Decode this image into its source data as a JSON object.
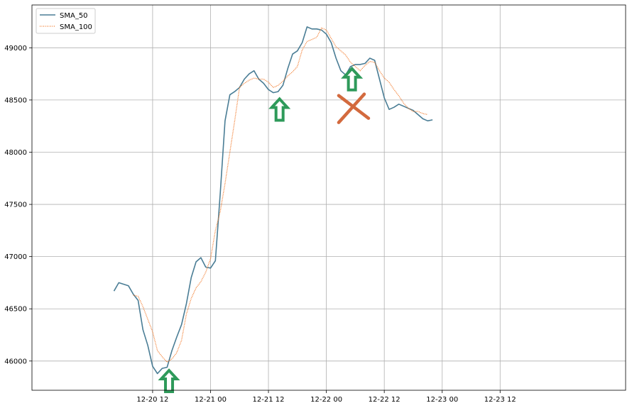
{
  "chart_data": {
    "type": "line",
    "title": "",
    "xlabel": "",
    "ylabel": "",
    "x_unit": "hours",
    "x_range": [
      -13,
      110
    ],
    "x_ticks": [
      {
        "x": 12,
        "label": "12-20 12"
      },
      {
        "x": 24,
        "label": "12-21 00"
      },
      {
        "x": 36,
        "label": "12-21 12"
      },
      {
        "x": 48,
        "label": "12-22 00"
      },
      {
        "x": 60,
        "label": "12-22 12"
      },
      {
        "x": 72,
        "label": "12-23 00"
      },
      {
        "x": 84,
        "label": "12-23 12"
      }
    ],
    "ylim": [
      45720,
      49410
    ],
    "y_ticks": [
      46000,
      46500,
      47000,
      47500,
      48000,
      48500,
      49000
    ],
    "grid": true,
    "legend_position": "top-left",
    "series": [
      {
        "name": "SMA_50",
        "color": "#4a7d95",
        "style": "solid",
        "points": [
          [
            4,
            46670
          ],
          [
            5,
            46750
          ],
          [
            7,
            46720
          ],
          [
            8,
            46640
          ],
          [
            9,
            46580
          ],
          [
            10,
            46300
          ],
          [
            11,
            46150
          ],
          [
            12,
            45950
          ],
          [
            13,
            45880
          ],
          [
            14,
            45930
          ],
          [
            15,
            45940
          ],
          [
            16,
            46100
          ],
          [
            17,
            46230
          ],
          [
            18,
            46350
          ],
          [
            19,
            46550
          ],
          [
            20,
            46800
          ],
          [
            21,
            46950
          ],
          [
            22,
            46990
          ],
          [
            23,
            46900
          ],
          [
            24,
            46890
          ],
          [
            25,
            46960
          ],
          [
            26,
            47600
          ],
          [
            27,
            48300
          ],
          [
            28,
            48550
          ],
          [
            29,
            48580
          ],
          [
            30,
            48620
          ],
          [
            31,
            48700
          ],
          [
            32,
            48750
          ],
          [
            33,
            48780
          ],
          [
            34,
            48700
          ],
          [
            35,
            48660
          ],
          [
            36,
            48600
          ],
          [
            37,
            48570
          ],
          [
            38,
            48580
          ],
          [
            39,
            48640
          ],
          [
            40,
            48800
          ],
          [
            41,
            48940
          ],
          [
            42,
            48970
          ],
          [
            43,
            49050
          ],
          [
            44,
            49200
          ],
          [
            45,
            49180
          ],
          [
            46,
            49180
          ],
          [
            47,
            49170
          ],
          [
            48,
            49130
          ],
          [
            49,
            49050
          ],
          [
            50,
            48900
          ],
          [
            51,
            48780
          ],
          [
            52,
            48740
          ],
          [
            53,
            48820
          ],
          [
            54,
            48840
          ],
          [
            55,
            48840
          ],
          [
            56,
            48850
          ],
          [
            57,
            48900
          ],
          [
            58,
            48880
          ],
          [
            59,
            48700
          ],
          [
            60,
            48520
          ],
          [
            61,
            48410
          ],
          [
            62,
            48430
          ],
          [
            63,
            48460
          ],
          [
            64,
            48440
          ],
          [
            65,
            48420
          ],
          [
            66,
            48400
          ],
          [
            67,
            48360
          ],
          [
            68,
            48320
          ],
          [
            69,
            48300
          ],
          [
            70,
            48310
          ]
        ]
      },
      {
        "name": "SMA_100",
        "color": "#f27a2b",
        "style": "dotted",
        "points": [
          [
            8,
            46630
          ],
          [
            9,
            46620
          ],
          [
            10,
            46520
          ],
          [
            11,
            46400
          ],
          [
            12,
            46280
          ],
          [
            13,
            46100
          ],
          [
            14,
            46040
          ],
          [
            15,
            45990
          ],
          [
            16,
            46020
          ],
          [
            17,
            46080
          ],
          [
            18,
            46200
          ],
          [
            19,
            46450
          ],
          [
            20,
            46600
          ],
          [
            21,
            46700
          ],
          [
            22,
            46760
          ],
          [
            23,
            46850
          ],
          [
            24,
            46980
          ],
          [
            25,
            47250
          ],
          [
            26,
            47430
          ],
          [
            27,
            47700
          ],
          [
            28,
            48000
          ],
          [
            29,
            48300
          ],
          [
            30,
            48620
          ],
          [
            31,
            48660
          ],
          [
            32,
            48690
          ],
          [
            33,
            48710
          ],
          [
            34,
            48700
          ],
          [
            35,
            48700
          ],
          [
            36,
            48670
          ],
          [
            37,
            48620
          ],
          [
            38,
            48640
          ],
          [
            39,
            48680
          ],
          [
            40,
            48730
          ],
          [
            41,
            48770
          ],
          [
            42,
            48820
          ],
          [
            43,
            48980
          ],
          [
            44,
            49060
          ],
          [
            45,
            49080
          ],
          [
            46,
            49100
          ],
          [
            47,
            49190
          ],
          [
            48,
            49170
          ],
          [
            49,
            49090
          ],
          [
            50,
            49010
          ],
          [
            51,
            48970
          ],
          [
            52,
            48930
          ],
          [
            53,
            48860
          ],
          [
            54,
            48820
          ],
          [
            55,
            48780
          ],
          [
            56,
            48830
          ],
          [
            57,
            48870
          ],
          [
            58,
            48860
          ],
          [
            59,
            48780
          ],
          [
            60,
            48710
          ],
          [
            61,
            48670
          ],
          [
            62,
            48600
          ],
          [
            63,
            48540
          ],
          [
            64,
            48470
          ],
          [
            65,
            48420
          ],
          [
            66,
            48390
          ],
          [
            67,
            48390
          ],
          [
            68,
            48370
          ],
          [
            69,
            48360
          ]
        ]
      }
    ],
    "annotations": [
      {
        "type": "up-arrow",
        "color": "#2e9a5a",
        "x": 15.4,
        "y": 45910
      },
      {
        "type": "up-arrow",
        "color": "#2e9a5a",
        "x": 38.3,
        "y": 48510
      },
      {
        "type": "up-arrow",
        "color": "#2e9a5a",
        "x": 53.3,
        "y": 48800
      },
      {
        "type": "cross",
        "color": "#d36a3e",
        "x": 53.2,
        "y": 48420
      }
    ]
  }
}
